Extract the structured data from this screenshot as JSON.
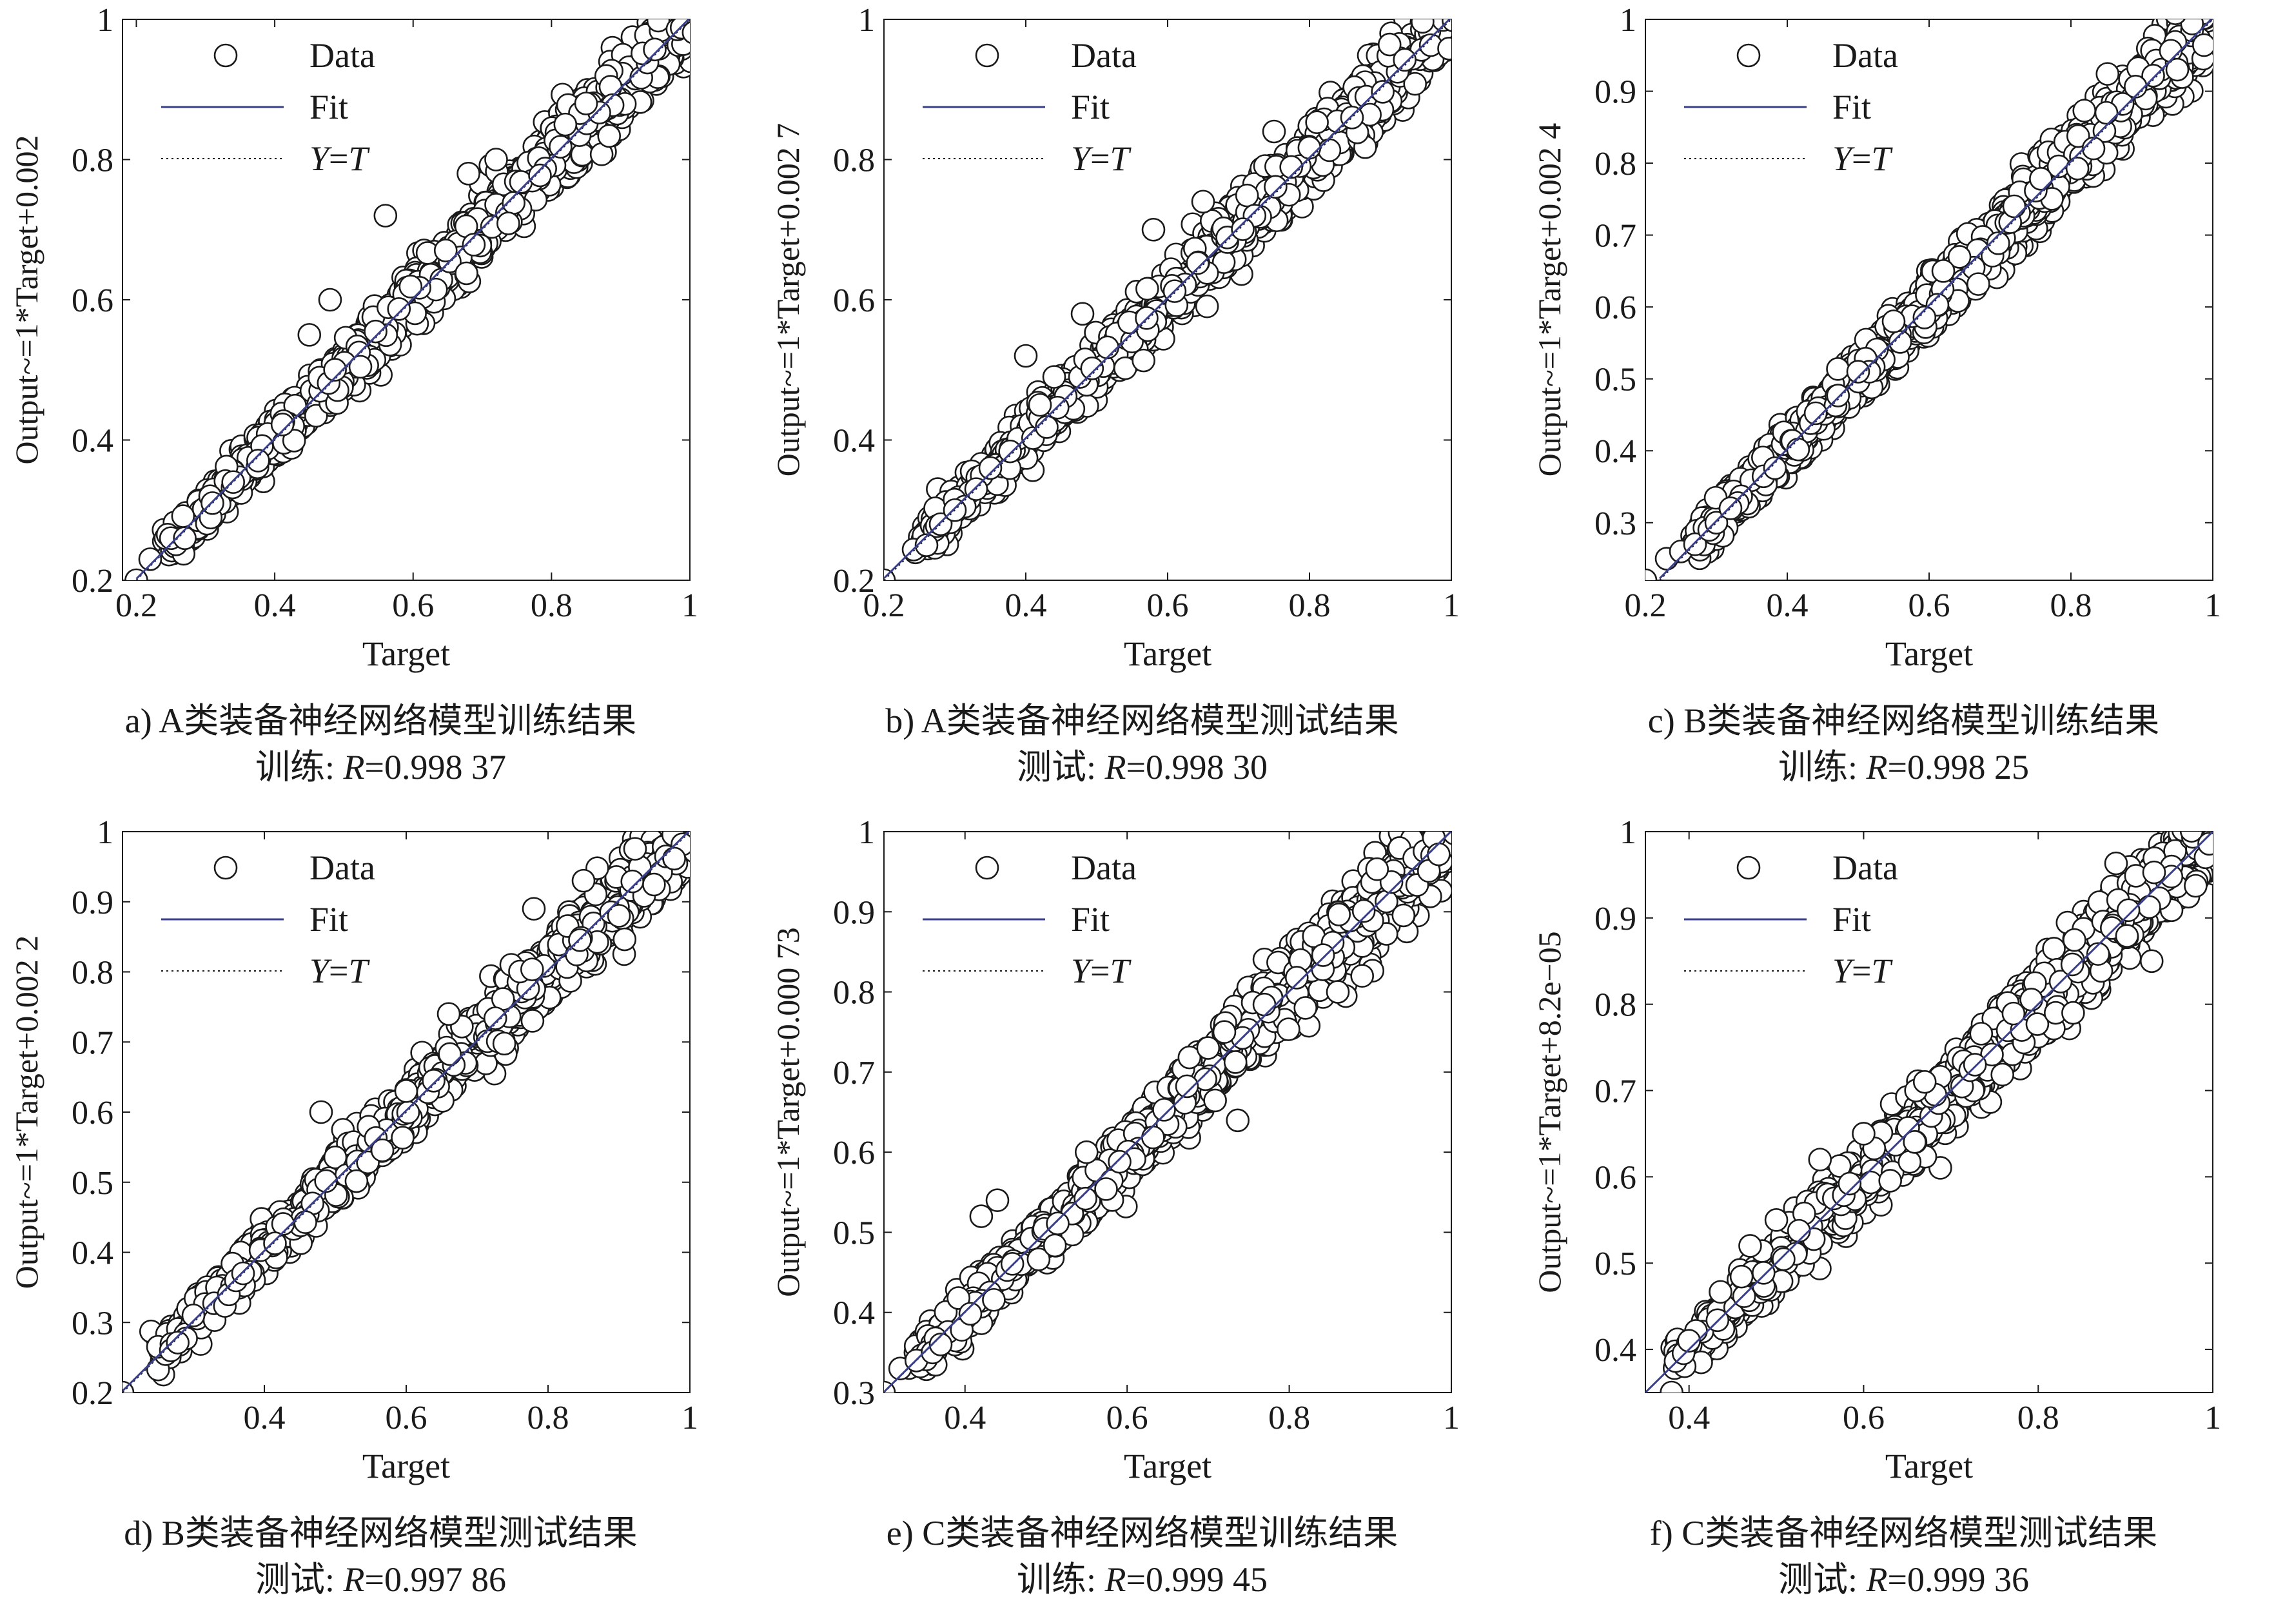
{
  "style": {
    "marker_color": "#1a1a1a",
    "fit_color": "#3a3f8a",
    "yt_color": "#1a1a1a"
  },
  "panels": [
    {
      "id": "a",
      "caption": "a) A类装备神经网络模型训练结果",
      "r_prefix": "训练: ",
      "r_symbol": "R",
      "r_value": "=0.998 37",
      "chart_data": {
        "type": "scatter",
        "xlabel": "Target",
        "ylabel": "Output~=1*Target+0.002",
        "xlim": [
          0.18,
          1.0
        ],
        "ylim": [
          0.2,
          1.0
        ],
        "xticks": [
          0.2,
          0.4,
          0.6,
          0.8,
          1
        ],
        "yticks": [
          0.2,
          0.4,
          0.6,
          0.8,
          1
        ],
        "legend": [
          "Data",
          "Fit",
          "Y=T"
        ],
        "legend_location": "top-left",
        "fit": {
          "slope": 1,
          "intercept": 0.002
        },
        "outliers": [
          [
            0.2,
            0.2
          ],
          [
            0.22,
            0.23
          ],
          [
            0.25,
            0.26
          ],
          [
            0.27,
            0.26
          ],
          [
            0.31,
            0.31
          ],
          [
            0.34,
            0.34
          ],
          [
            0.45,
            0.55
          ],
          [
            0.56,
            0.72
          ],
          [
            0.48,
            0.6
          ],
          [
            0.68,
            0.78
          ],
          [
            0.72,
            0.8
          ],
          [
            0.82,
            0.85
          ],
          [
            0.85,
            0.88
          ]
        ]
      }
    },
    {
      "id": "b",
      "caption": "b) A类装备神经网络模型测试结果",
      "r_prefix": "测试: ",
      "r_symbol": "R",
      "r_value": "=0.998 30",
      "chart_data": {
        "type": "scatter",
        "xlabel": "Target",
        "ylabel": "Output~=1*Target+0.002 7",
        "xlim": [
          0.2,
          1.0
        ],
        "ylim": [
          0.2,
          1.0
        ],
        "xticks": [
          0.2,
          0.4,
          0.6,
          0.8,
          1
        ],
        "yticks": [
          0.2,
          0.4,
          0.6,
          0.8,
          1
        ],
        "legend": [
          "Data",
          "Fit",
          "Y=T"
        ],
        "legend_location": "top-left",
        "fit": {
          "slope": 1,
          "intercept": 0.0027
        },
        "outliers": [
          [
            0.2,
            0.2
          ],
          [
            0.26,
            0.25
          ],
          [
            0.28,
            0.28
          ],
          [
            0.3,
            0.3
          ],
          [
            0.33,
            0.33
          ],
          [
            0.35,
            0.36
          ],
          [
            0.4,
            0.52
          ],
          [
            0.42,
            0.45
          ],
          [
            0.44,
            0.49
          ],
          [
            0.48,
            0.58
          ],
          [
            0.58,
            0.7
          ],
          [
            0.65,
            0.74
          ],
          [
            0.75,
            0.84
          ],
          [
            0.86,
            0.86
          ]
        ]
      }
    },
    {
      "id": "c",
      "caption": "c) B类装备神经网络模型训练结果",
      "r_prefix": "训练: ",
      "r_symbol": "R",
      "r_value": "=0.998 25",
      "chart_data": {
        "type": "scatter",
        "xlabel": "Target",
        "ylabel": "Output~=1*Target+0.002 4",
        "xlim": [
          0.2,
          1.0
        ],
        "ylim": [
          0.22,
          1.0
        ],
        "xticks": [
          0.2,
          0.4,
          0.6,
          0.8,
          1
        ],
        "yticks": [
          0.3,
          0.4,
          0.5,
          0.6,
          0.7,
          0.8,
          0.9,
          1
        ],
        "legend": [
          "Data",
          "Fit",
          "Y=T"
        ],
        "legend_location": "top-left",
        "fit": {
          "slope": 1,
          "intercept": 0.0024
        },
        "outliers": [
          [
            0.2,
            0.22
          ],
          [
            0.23,
            0.25
          ],
          [
            0.25,
            0.26
          ],
          [
            0.27,
            0.27
          ],
          [
            0.29,
            0.29
          ],
          [
            0.3,
            0.3
          ],
          [
            0.32,
            0.32
          ],
          [
            0.5,
            0.51
          ],
          [
            0.55,
            0.58
          ],
          [
            0.62,
            0.65
          ],
          [
            0.72,
            0.74
          ],
          [
            0.85,
            0.87
          ],
          [
            0.95,
            0.93
          ]
        ]
      }
    },
    {
      "id": "d",
      "caption": "d) B类装备神经网络模型测试结果",
      "r_prefix": "测试: ",
      "r_symbol": "R",
      "r_value": "=0.997 86",
      "chart_data": {
        "type": "scatter",
        "xlabel": "Target",
        "ylabel": "Output~=1*Target+0.002 2",
        "xlim": [
          0.2,
          1.0
        ],
        "ylim": [
          0.2,
          1.0
        ],
        "xticks": [
          0.4,
          0.6,
          0.8,
          1
        ],
        "yticks": [
          0.2,
          0.3,
          0.4,
          0.5,
          0.6,
          0.7,
          0.8,
          0.9,
          1
        ],
        "legend": [
          "Data",
          "Fit",
          "Y=T"
        ],
        "legend_location": "top-left",
        "fit": {
          "slope": 1,
          "intercept": 0.0022
        },
        "outliers": [
          [
            0.2,
            0.2
          ],
          [
            0.3,
            0.31
          ],
          [
            0.35,
            0.34
          ],
          [
            0.36,
            0.36
          ],
          [
            0.37,
            0.37
          ],
          [
            0.48,
            0.6
          ],
          [
            0.6,
            0.63
          ],
          [
            0.66,
            0.74
          ],
          [
            0.78,
            0.89
          ],
          [
            0.85,
            0.93
          ],
          [
            0.9,
            0.88
          ]
        ]
      }
    },
    {
      "id": "e",
      "caption": "e) C类装备神经网络模型训练结果",
      "r_prefix": "训练: ",
      "r_symbol": "R",
      "r_value": "=0.999 45",
      "chart_data": {
        "type": "scatter",
        "xlabel": "Target",
        "ylabel": "Output~=1*Target+0.000 73",
        "xlim": [
          0.3,
          1.0
        ],
        "ylim": [
          0.3,
          1.0
        ],
        "xticks": [
          0.4,
          0.6,
          0.8,
          1
        ],
        "yticks": [
          0.3,
          0.4,
          0.5,
          0.6,
          0.7,
          0.8,
          0.9,
          1
        ],
        "legend": [
          "Data",
          "Fit",
          "Y=T"
        ],
        "legend_location": "top-left",
        "fit": {
          "slope": 1,
          "intercept": 0.00073
        },
        "outliers": [
          [
            0.3,
            0.3
          ],
          [
            0.32,
            0.33
          ],
          [
            0.34,
            0.34
          ],
          [
            0.36,
            0.35
          ],
          [
            0.37,
            0.36
          ],
          [
            0.42,
            0.52
          ],
          [
            0.44,
            0.54
          ],
          [
            0.55,
            0.6
          ],
          [
            0.7,
            0.73
          ],
          [
            0.72,
            0.75
          ],
          [
            0.82,
            0.78
          ],
          [
            0.86,
            0.8
          ],
          [
            0.89,
            0.82
          ]
        ]
      }
    },
    {
      "id": "f",
      "caption": "f) C类装备神经网络模型测试结果",
      "r_prefix": "测试: ",
      "r_symbol": "R",
      "r_value": "=0.999 36",
      "chart_data": {
        "type": "scatter",
        "xlabel": "Target",
        "ylabel": "Output~=1*Target+8.2e−05",
        "xlim": [
          0.35,
          1.0
        ],
        "ylim": [
          0.35,
          1.0
        ],
        "xticks": [
          0.4,
          0.6,
          0.8,
          1
        ],
        "yticks": [
          0.4,
          0.5,
          0.6,
          0.7,
          0.8,
          0.9,
          1
        ],
        "legend": [
          "Data",
          "Fit",
          "Y=T"
        ],
        "legend_location": "top-left",
        "fit": {
          "slope": 1,
          "intercept": 8.2e-05
        },
        "outliers": [
          [
            0.38,
            0.35
          ],
          [
            0.4,
            0.41
          ],
          [
            0.47,
            0.52
          ],
          [
            0.5,
            0.55
          ],
          [
            0.55,
            0.62
          ],
          [
            0.6,
            0.65
          ],
          [
            0.66,
            0.7
          ],
          [
            0.67,
            0.71
          ],
          [
            0.82,
            0.79
          ],
          [
            0.84,
            0.79
          ],
          [
            0.93,
            0.85
          ]
        ]
      }
    }
  ]
}
